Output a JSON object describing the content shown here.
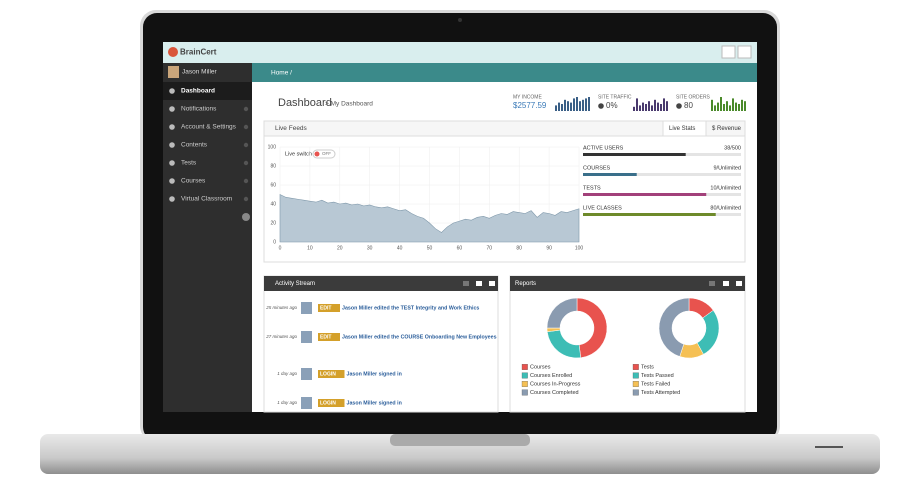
{
  "header": {
    "logo": "BrainCert"
  },
  "sidebar": {
    "user": "Jason Miller",
    "menu": [
      "Dashboard",
      "Notifications",
      "Account & Settings",
      "Contents",
      "Tests",
      "Courses",
      "Virtual Classroom"
    ]
  },
  "breadcrumb": "Home /",
  "page": {
    "title": "Dashboard",
    "subtitle": "> My Dashboard"
  },
  "stats": [
    {
      "label": "MY INCOME",
      "value": "$2577.59",
      "color": "#3a5f86",
      "spark": [
        4,
        6,
        5,
        8,
        7,
        6,
        9,
        10,
        7,
        8,
        9,
        10
      ]
    },
    {
      "label": "SITE TRAFFIC",
      "value": "0%",
      "color": "#4a3a6e",
      "spark": [
        3,
        9,
        4,
        6,
        5,
        7,
        4,
        8,
        6,
        5,
        9,
        7
      ]
    },
    {
      "label": "SITE ORDERS",
      "value": "80",
      "color": "#4a8a2a",
      "spark": [
        8,
        4,
        6,
        10,
        5,
        7,
        4,
        9,
        6,
        5,
        8,
        7
      ]
    }
  ],
  "live_feeds": {
    "title": "Live Feeds",
    "tabs": [
      "Live Stats",
      "$ Revenue"
    ],
    "switch_label": "Live switch",
    "switch_state": "OFF",
    "chart": {
      "type": "area",
      "color": "#b8c8d4",
      "x": [
        0,
        2,
        4,
        6,
        8,
        10,
        12,
        14,
        16,
        18,
        20,
        22,
        24,
        26,
        28,
        30,
        32,
        34,
        36,
        38,
        40,
        42,
        44,
        46,
        48,
        50,
        52,
        54,
        56,
        58,
        60,
        62,
        64,
        66,
        68,
        70,
        72,
        74,
        76,
        78,
        80,
        82,
        84,
        86,
        88,
        90,
        92,
        94,
        96,
        98,
        100
      ],
      "values": [
        50,
        47,
        46,
        45,
        44,
        43,
        42,
        44,
        41,
        42,
        40,
        41,
        39,
        40,
        38,
        39,
        37,
        36,
        37,
        35,
        33,
        34,
        30,
        27,
        25,
        20,
        14,
        10,
        16,
        20,
        22,
        24,
        23,
        26,
        27,
        25,
        28,
        30,
        29,
        32,
        31,
        30,
        33,
        26,
        31,
        30,
        28,
        32,
        31,
        33,
        35
      ],
      "xlim": [
        0,
        100
      ],
      "ylim": [
        0,
        100
      ],
      "xticks": [
        0,
        10,
        20,
        30,
        40,
        50,
        60,
        70,
        80,
        90,
        100
      ],
      "yticks": [
        0,
        20,
        40,
        60,
        80,
        100
      ],
      "grid": true
    }
  },
  "live_stats": [
    {
      "label": "ACTIVE USERS",
      "value": "38/500",
      "fill_percent": 65,
      "color": "#333333"
    },
    {
      "label": "COURSES",
      "value": "9/Unlimited",
      "fill_percent": 34,
      "color": "#3a6f8a"
    },
    {
      "label": "TESTS",
      "value": "10/Unlimited",
      "fill_percent": 78,
      "color": "#a2407a"
    },
    {
      "label": "LIVE CLASSES",
      "value": "80/Unlimited",
      "fill_percent": 84,
      "color": "#6e8a2a"
    }
  ],
  "activity": {
    "title": "Activity Stream",
    "items": [
      {
        "time": "25 minutes ago",
        "tag": "EDIT",
        "text": "Jason Miller edited the TEST Integrity and Work Ethics"
      },
      {
        "time": "27 minutes ago",
        "tag": "EDIT",
        "text": "Jason Miller edited the COURSE Onboarding New Employees"
      },
      {
        "time": "1 day ago",
        "tag": "LOGIN",
        "text": "Jason Miller signed in"
      },
      {
        "time": "1 day ago",
        "tag": "LOGIN",
        "text": "Jason Miller signed in"
      }
    ]
  },
  "reports": {
    "title": "Reports",
    "charts": [
      {
        "type": "donut",
        "categories": [
          "Courses",
          "Courses Enrolled",
          "Courses In-Progress",
          "Courses Completed"
        ],
        "values": [
          48,
          25,
          2,
          25
        ],
        "colors": [
          "#e8534e",
          "#3dbdb5",
          "#f5c054",
          "#8a9bb0"
        ]
      },
      {
        "type": "donut",
        "categories": [
          "Tests",
          "Tests Passed",
          "Tests Failed",
          "Tests Attempted"
        ],
        "values": [
          15,
          27,
          13,
          45
        ],
        "colors": [
          "#e8534e",
          "#3dbdb5",
          "#f5c054",
          "#8a9bb0"
        ]
      }
    ]
  }
}
